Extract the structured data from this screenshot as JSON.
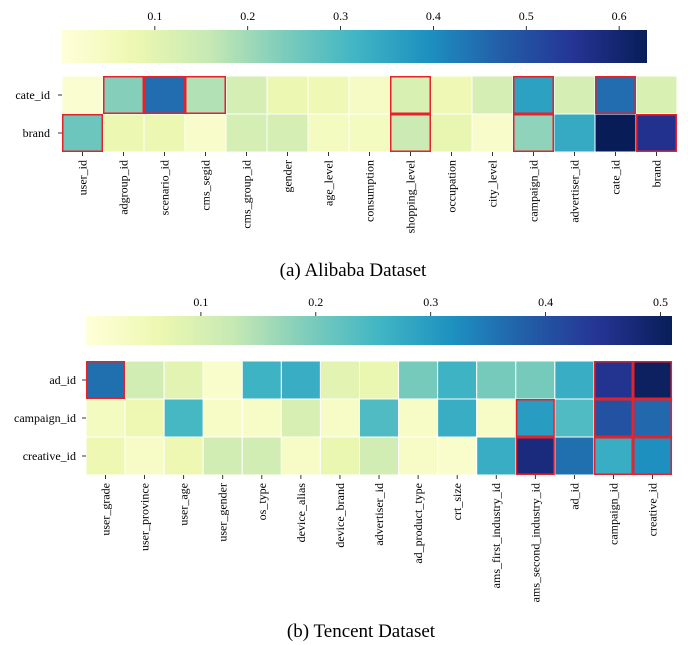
{
  "chart_data": [
    {
      "type": "heatmap",
      "caption": "(a) Alibaba Dataset",
      "colormap": "YlGnBu",
      "colorbar": {
        "min": 0.0,
        "max": 0.63,
        "ticks": [
          0.1,
          0.2,
          0.3,
          0.4,
          0.5,
          0.6
        ]
      },
      "rows": [
        "cate_id",
        "brand"
      ],
      "columns": [
        "user_id",
        "adgroup_id",
        "scenario_id",
        "cms_segid",
        "cms_group_id",
        "gender",
        "age_level",
        "consumption",
        "shopping_level",
        "occupation",
        "city_level",
        "campaign_id",
        "advertiser_id",
        "cate_id",
        "brand"
      ],
      "values": [
        [
          0.02,
          0.23,
          0.45,
          0.18,
          0.13,
          0.08,
          0.07,
          0.04,
          0.12,
          0.07,
          0.13,
          0.36,
          0.13,
          0.45,
          0.12
        ],
        [
          0.26,
          0.08,
          0.08,
          0.03,
          0.13,
          0.13,
          0.05,
          0.05,
          0.15,
          0.09,
          0.03,
          0.22,
          0.34,
          0.63,
          0.56
        ]
      ],
      "highlighted": [
        [
          false,
          true,
          true,
          true,
          false,
          false,
          false,
          false,
          true,
          false,
          false,
          true,
          false,
          true,
          false
        ],
        [
          true,
          false,
          false,
          false,
          false,
          false,
          false,
          false,
          true,
          false,
          false,
          true,
          false,
          false,
          true
        ]
      ]
    },
    {
      "type": "heatmap",
      "caption": "(b) Tencent Dataset",
      "colormap": "YlGnBu",
      "colorbar": {
        "min": 0.0,
        "max": 0.51,
        "ticks": [
          0.1,
          0.2,
          0.3,
          0.4,
          0.5
        ]
      },
      "rows": [
        "ad_id",
        "campaign_id",
        "creative_id"
      ],
      "columns": [
        "user_grade",
        "user_province",
        "user_age",
        "user_gender",
        "os_type",
        "device_alias",
        "device_brand",
        "advertiser_id",
        "ad_product_type",
        "crt_size",
        "ams_first_industry_id",
        "ams_second_industry_id",
        "ad_id",
        "campaign_id",
        "creative_id"
      ],
      "values": [
        [
          0.36,
          0.11,
          0.08,
          0.02,
          0.26,
          0.27,
          0.08,
          0.07,
          0.2,
          0.26,
          0.2,
          0.2,
          0.27,
          0.45,
          0.5
        ],
        [
          0.04,
          0.06,
          0.25,
          0.03,
          0.03,
          0.1,
          0.03,
          0.24,
          0.03,
          0.27,
          0.03,
          0.3,
          0.24,
          0.4,
          0.37
        ],
        [
          0.06,
          0.03,
          0.06,
          0.11,
          0.11,
          0.03,
          0.07,
          0.11,
          0.03,
          0.02,
          0.27,
          0.47,
          0.36,
          0.27,
          0.32
        ]
      ],
      "highlighted": [
        [
          true,
          false,
          false,
          false,
          false,
          false,
          false,
          false,
          false,
          false,
          false,
          false,
          false,
          true,
          true
        ],
        [
          false,
          false,
          false,
          false,
          false,
          false,
          false,
          false,
          false,
          false,
          false,
          true,
          false,
          true,
          true
        ],
        [
          false,
          false,
          false,
          false,
          false,
          false,
          false,
          false,
          false,
          false,
          false,
          true,
          false,
          true,
          true
        ]
      ]
    }
  ]
}
